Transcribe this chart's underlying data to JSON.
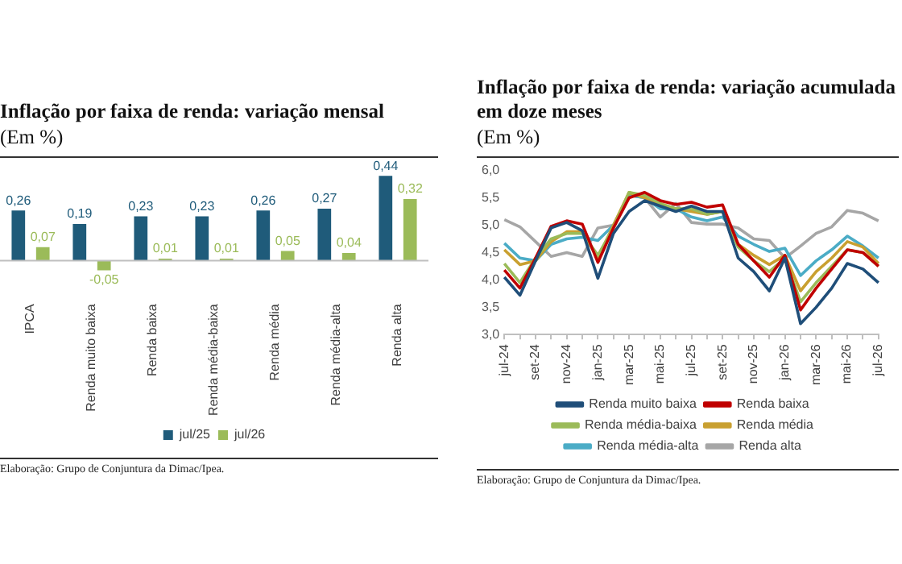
{
  "chart_data": [
    {
      "type": "bar",
      "title": "Inflação por faixa de renda: variação mensal",
      "subtitle": "(Em %)",
      "categories": [
        "IPCA",
        "Renda muito baixa",
        "Renda baixa",
        "Renda média-baixa",
        "Renda média",
        "Renda média-alta",
        "Renda alta"
      ],
      "series": [
        {
          "name": "jul/25",
          "color": "#1f5b7a",
          "values": [
            0.26,
            0.19,
            0.23,
            0.23,
            0.26,
            0.27,
            0.44
          ],
          "value_labels": [
            "0,26",
            "0,19",
            "0,23",
            "0,23",
            "0,26",
            "0,27",
            "0,44"
          ]
        },
        {
          "name": "jul/26",
          "color": "#9bbb59",
          "values": [
            0.07,
            -0.05,
            0.01,
            0.01,
            0.05,
            0.04,
            0.32
          ],
          "value_labels": [
            "0,07",
            "-0,05",
            "0,01",
            "0,01",
            "0,05",
            "0,04",
            "0,32"
          ]
        }
      ],
      "legend": "bottom",
      "grid": false,
      "annotations": [
        "Elaboração: Grupo de Conjuntura da Dimac/Ipea."
      ]
    },
    {
      "type": "line",
      "title": "Inflação por faixa de renda: variação acumulada em doze meses",
      "subtitle": "(Em %)",
      "categories": [
        "jul-24",
        null,
        "set-24",
        null,
        "nov-24",
        null,
        "jan-25",
        null,
        "mar-25",
        null,
        "mai-25",
        null,
        "jul-25",
        null,
        "set-25",
        null,
        "nov-25",
        null,
        "jan-26",
        null,
        "mar-26",
        null,
        "mai-26",
        null,
        "jul-26"
      ],
      "series": [
        {
          "name": "Renda muito baixa",
          "color": "#1f4e79",
          "values": [
            4.05,
            3.72,
            4.35,
            4.95,
            5.05,
            4.9,
            4.03,
            4.85,
            5.25,
            5.45,
            5.35,
            5.25,
            5.35,
            5.25,
            5.25,
            4.4,
            4.15,
            3.8,
            4.4,
            3.2,
            3.5,
            3.85,
            4.3,
            4.2,
            3.95
          ]
        },
        {
          "name": "Renda baixa",
          "color": "#c00000",
          "values": [
            4.18,
            3.85,
            4.4,
            4.98,
            5.08,
            5.02,
            4.32,
            4.95,
            5.5,
            5.6,
            5.45,
            5.38,
            5.42,
            5.33,
            5.37,
            4.65,
            4.35,
            4.05,
            4.45,
            3.45,
            3.85,
            4.2,
            4.55,
            4.5,
            4.25
          ]
        },
        {
          "name": "Renda média-baixa",
          "color": "#9bbb59",
          "values": [
            4.3,
            3.95,
            4.4,
            4.75,
            4.85,
            4.85,
            4.45,
            4.95,
            5.6,
            5.55,
            5.4,
            5.3,
            5.3,
            5.2,
            5.25,
            4.6,
            4.35,
            4.15,
            4.4,
            3.6,
            3.95,
            4.25,
            4.55,
            4.5,
            4.25
          ]
        },
        {
          "name": "Renda média",
          "color": "#c9a030",
          "values": [
            4.55,
            4.28,
            4.35,
            4.7,
            4.88,
            4.88,
            4.4,
            5.0,
            5.6,
            5.5,
            5.35,
            5.3,
            5.25,
            5.2,
            5.25,
            4.65,
            4.45,
            4.28,
            4.45,
            3.8,
            4.15,
            4.4,
            4.7,
            4.6,
            4.3
          ]
        },
        {
          "name": "Renda média-alta",
          "color": "#4bacc6",
          "values": [
            4.67,
            4.4,
            4.35,
            4.65,
            4.75,
            4.78,
            4.72,
            5.0,
            5.55,
            5.5,
            5.3,
            5.3,
            5.15,
            5.08,
            5.15,
            4.8,
            4.65,
            4.52,
            4.58,
            4.08,
            4.35,
            4.55,
            4.8,
            4.62,
            4.4
          ]
        },
        {
          "name": "Renda alta",
          "color": "#a6a6a6",
          "values": [
            5.1,
            4.97,
            4.7,
            4.43,
            4.5,
            4.43,
            4.95,
            5.0,
            5.55,
            5.5,
            5.15,
            5.4,
            5.05,
            5.02,
            5.02,
            4.95,
            4.75,
            4.72,
            4.4,
            4.62,
            4.85,
            4.97,
            5.27,
            5.22,
            5.08
          ]
        }
      ],
      "ylim": [
        3,
        6
      ],
      "yticks": [
        {
          "value": 3,
          "label": "3,0"
        },
        {
          "value": 3.5,
          "label": "3,5"
        },
        {
          "value": 4,
          "label": "4,0"
        },
        {
          "value": 4.5,
          "label": "4,5"
        },
        {
          "value": 5,
          "label": "5,0"
        },
        {
          "value": 5.5,
          "label": "5,5"
        },
        {
          "value": 6,
          "label": "6,0"
        }
      ],
      "legend": "bottom",
      "grid": false,
      "marker": "none",
      "line_style": "solid",
      "annotations": [
        "Elaboração: Grupo de Conjuntura da Dimac/Ipea."
      ]
    }
  ]
}
